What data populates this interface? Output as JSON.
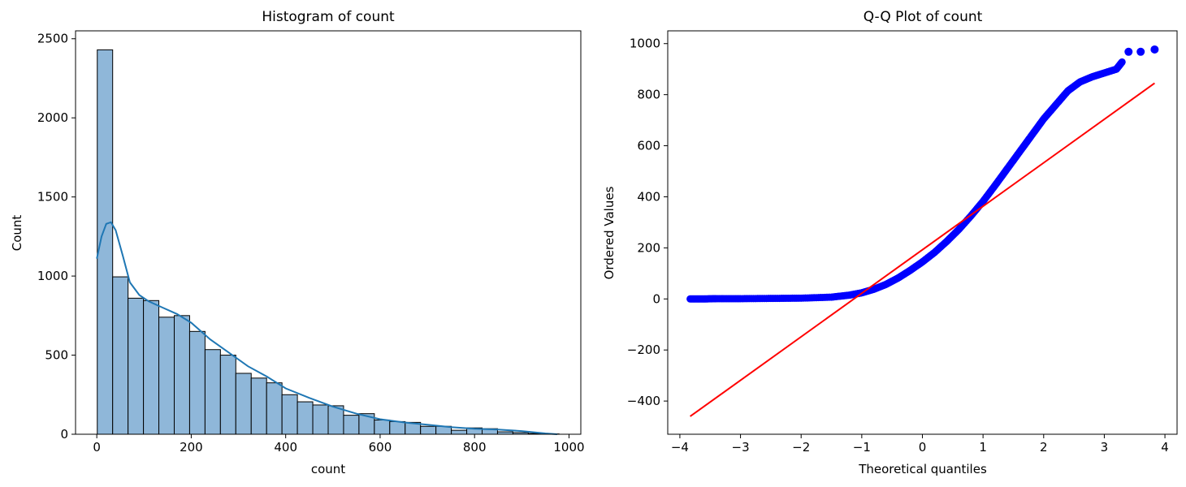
{
  "chart_data": [
    {
      "type": "bar",
      "subtype": "histogram-with-kde",
      "title": "Histogram of count",
      "xlabel": "count",
      "ylabel": "Count",
      "xlim": [
        -45,
        1025
      ],
      "ylim": [
        0,
        2550
      ],
      "xticks": [
        0,
        200,
        400,
        600,
        800,
        1000
      ],
      "yticks": [
        0,
        500,
        1000,
        1500,
        2000,
        2500
      ],
      "bin_width": 32.6,
      "bin_start": 1,
      "values": [
        2430,
        995,
        860,
        845,
        740,
        750,
        650,
        535,
        500,
        385,
        355,
        325,
        250,
        205,
        185,
        180,
        120,
        130,
        90,
        80,
        75,
        50,
        50,
        25,
        40,
        35,
        15,
        10,
        5,
        2
      ],
      "kde": {
        "x": [
          0,
          10,
          20,
          30,
          40,
          55,
          70,
          90,
          110,
          140,
          170,
          200,
          240,
          280,
          320,
          360,
          400,
          450,
          500,
          550,
          600,
          650,
          700,
          750,
          800,
          850,
          900,
          950,
          975
        ],
        "y": [
          1110,
          1250,
          1330,
          1340,
          1290,
          1130,
          960,
          880,
          840,
          800,
          760,
          705,
          600,
          515,
          430,
          365,
          290,
          230,
          175,
          130,
          95,
          75,
          60,
          45,
          35,
          30,
          20,
          5,
          0
        ]
      },
      "colors": {
        "bar_fill": "#8fb7d9",
        "bar_edge": "#000000",
        "kde_line": "#1f77b4"
      }
    },
    {
      "type": "scatter",
      "subtype": "qq-plot",
      "title": "Q-Q Plot of count",
      "xlabel": "Theoretical quantiles",
      "ylabel": "Ordered Values",
      "xlim": [
        -4.2,
        4.2
      ],
      "ylim": [
        -530,
        1050
      ],
      "xticks": [
        -4,
        -3,
        -2,
        -1,
        0,
        1,
        2,
        3,
        4
      ],
      "yticks": [
        -400,
        -200,
        0,
        200,
        400,
        600,
        800,
        1000
      ],
      "quantile_curve": {
        "x": [
          -3.83,
          -3.6,
          -3.4,
          -3.0,
          -2.5,
          -2.0,
          -1.5,
          -1.2,
          -1.0,
          -0.8,
          -0.6,
          -0.4,
          -0.2,
          0.0,
          0.2,
          0.4,
          0.6,
          0.8,
          1.0,
          1.2,
          1.4,
          1.6,
          1.8,
          2.0,
          2.2,
          2.4,
          2.6,
          2.8,
          3.0,
          3.2,
          3.3
        ],
        "y": [
          0,
          0,
          1,
          1,
          2,
          3,
          7,
          15,
          24,
          38,
          57,
          82,
          112,
          145,
          182,
          225,
          272,
          325,
          382,
          445,
          510,
          575,
          640,
          705,
          760,
          815,
          850,
          870,
          885,
          900,
          930
        ]
      },
      "outlier_points": {
        "x": [
          3.4,
          3.6,
          3.83
        ],
        "y": [
          968,
          968,
          977
        ]
      },
      "fit_line": {
        "x": [
          -3.83,
          3.83
        ],
        "y": [
          -460,
          845
        ]
      },
      "colors": {
        "points": "#0000ff",
        "fit_line": "#ff0000"
      }
    }
  ]
}
